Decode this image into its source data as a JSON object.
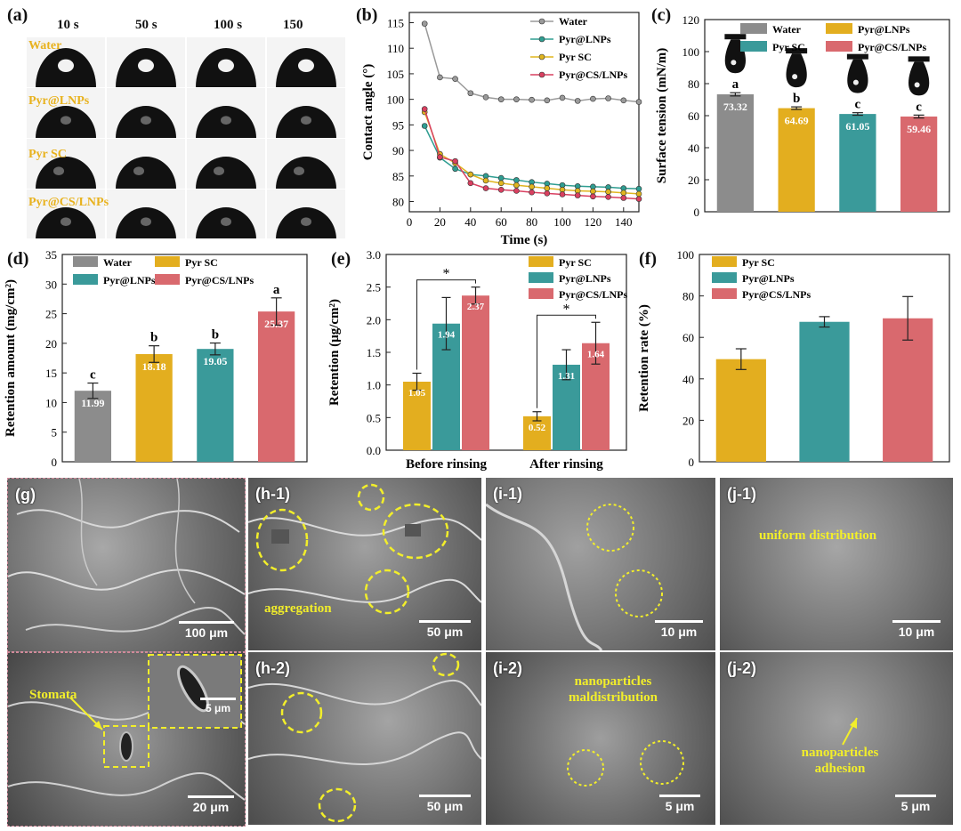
{
  "panels": {
    "a": "(a)",
    "b": "(b)",
    "c": "(c)",
    "d": "(d)",
    "e": "(e)",
    "f": "(f)",
    "g": "(g)",
    "h1": "(h-1)",
    "h2": "(h-2)",
    "i1": "(i-1)",
    "i2": "(i-2)",
    "j1": "(j-1)",
    "j2": "(j-2)"
  },
  "droplets": {
    "times": [
      "10 s",
      "50 s",
      "100 s",
      "150 s"
    ],
    "rows": [
      "Water",
      "Pyr@LNPs",
      "Pyr SC",
      "Pyr@CS/LNPs"
    ]
  },
  "colors": {
    "water": "#8c8c8c",
    "lnp": "#3a9a9a",
    "sc": "#e3ae1f",
    "cs": "#d9696e",
    "water_line": "#9a9a9a",
    "lnp_line": "#2f9d91",
    "sc_line": "#e0b51f",
    "cs_line": "#d94060",
    "sem_label": "#f2ee2a"
  },
  "chart_data": [
    {
      "id": "b",
      "type": "line",
      "xlabel": "Time (s)",
      "ylabel": "Contact angle (°)",
      "xlim": [
        0,
        150
      ],
      "ylim": [
        78,
        117
      ],
      "xticks": [
        0,
        20,
        40,
        60,
        80,
        100,
        120,
        140
      ],
      "yticks": [
        80,
        85,
        90,
        95,
        100,
        105,
        110,
        115
      ],
      "x": [
        10,
        20,
        30,
        40,
        50,
        60,
        70,
        80,
        90,
        100,
        110,
        120,
        130,
        140,
        150
      ],
      "series": [
        {
          "name": "Water",
          "color": "#9a9a9a",
          "values": [
            114.8,
            104.3,
            104.0,
            101.2,
            100.4,
            100.0,
            100.0,
            99.9,
            99.8,
            100.3,
            99.7,
            100.1,
            100.2,
            99.8,
            99.5
          ]
        },
        {
          "name": "Pyr@LNPs",
          "color": "#2f9d91",
          "values": [
            94.8,
            88.6,
            86.4,
            85.3,
            85.0,
            84.6,
            84.2,
            83.8,
            83.5,
            83.2,
            83.0,
            82.9,
            82.8,
            82.6,
            82.5
          ]
        },
        {
          "name": "Pyr SC",
          "color": "#e0b51f",
          "values": [
            97.5,
            89.3,
            87.5,
            85.3,
            84.1,
            83.6,
            83.2,
            82.9,
            82.6,
            82.3,
            82.1,
            82.0,
            81.9,
            81.7,
            81.5
          ]
        },
        {
          "name": "Pyr@CS/LNPs",
          "color": "#d94060",
          "values": [
            98.1,
            88.7,
            87.9,
            83.6,
            82.6,
            82.3,
            82.1,
            81.8,
            81.6,
            81.4,
            81.2,
            81.0,
            80.9,
            80.7,
            80.5
          ]
        }
      ]
    },
    {
      "id": "c",
      "type": "bar",
      "ylabel": "Surface tension (mN/m)",
      "ylim": [
        0,
        120
      ],
      "yticks": [
        0,
        20,
        40,
        60,
        80,
        100,
        120
      ],
      "categories": [
        "Water",
        "Pyr@LNPs",
        "Pyr SC",
        "Pyr@CS/LNPs"
      ],
      "values": [
        73.32,
        64.69,
        61.05,
        59.46
      ],
      "errors": [
        1.0,
        0.8,
        0.8,
        0.9
      ],
      "letters": [
        "a",
        "b",
        "c",
        "c"
      ],
      "value_labels": [
        "73.32",
        "64.69",
        "61.05",
        "59.46"
      ],
      "bar_colors": [
        "#8c8c8c",
        "#e3ae1f",
        "#3a9a9a",
        "#d9696e"
      ],
      "legend": [
        "Water",
        "Pyr@LNPs",
        "Pyr SC",
        "Pyr@CS/LNPs"
      ],
      "legend_colors": [
        "#8c8c8c",
        "#e3ae1f",
        "#3a9a9a",
        "#d9696e"
      ]
    },
    {
      "id": "d",
      "type": "bar",
      "ylabel": "Retention amount (mg/cm²)",
      "ylim": [
        0,
        35
      ],
      "yticks": [
        0,
        5,
        10,
        15,
        20,
        25,
        30,
        35
      ],
      "categories": [
        "Water",
        "Pyr SC",
        "Pyr@LNPs",
        "Pyr@CS/LNPs"
      ],
      "values": [
        11.99,
        18.18,
        19.05,
        25.37
      ],
      "errors": [
        1.3,
        1.4,
        1.0,
        2.3
      ],
      "letters": [
        "c",
        "b",
        "b",
        "a"
      ],
      "value_labels": [
        "11.99",
        "18.18",
        "19.05",
        "25.37"
      ],
      "bar_colors": [
        "#8c8c8c",
        "#e3ae1f",
        "#3a9a9a",
        "#d9696e"
      ],
      "legend": [
        "Water",
        "Pyr SC",
        "Pyr@LNPs",
        "Pyr@CS/LNPs"
      ],
      "legend_colors": [
        "#8c8c8c",
        "#e3ae1f",
        "#3a9a9a",
        "#d9696e"
      ]
    },
    {
      "id": "e",
      "type": "bar",
      "ylabel": "Retention (μg/cm²)",
      "ylim": [
        0,
        3.0
      ],
      "yticks": [
        "0.0",
        "0.5",
        "1.0",
        "1.5",
        "2.0",
        "2.5",
        "3.0"
      ],
      "categories": [
        "Before rinsing",
        "After rinsing"
      ],
      "series": [
        {
          "name": "Pyr SC",
          "color": "#e3ae1f",
          "values": [
            1.05,
            0.52
          ],
          "errors": [
            0.13,
            0.07
          ],
          "labels": [
            "1.05",
            "0.52"
          ]
        },
        {
          "name": "Pyr@LNPs",
          "color": "#3a9a9a",
          "values": [
            1.94,
            1.31
          ],
          "errors": [
            0.4,
            0.23
          ],
          "labels": [
            "1.94",
            "1.31"
          ]
        },
        {
          "name": "Pyr@CS/LNPs",
          "color": "#d9696e",
          "values": [
            2.37,
            1.64
          ],
          "errors": [
            0.13,
            0.32
          ],
          "labels": [
            "2.37",
            "1.64"
          ]
        }
      ],
      "significance": "*"
    },
    {
      "id": "f",
      "type": "bar",
      "ylabel": "Retention rate (%)",
      "ylim": [
        0,
        100
      ],
      "yticks": [
        0,
        20,
        40,
        60,
        80,
        100
      ],
      "categories": [
        "Pyr SC",
        "Pyr@LNPs",
        "Pyr@CS/LNPs"
      ],
      "values": [
        49.5,
        67.5,
        69.2
      ],
      "errors": [
        5.0,
        2.5,
        10.5
      ],
      "bar_colors": [
        "#e3ae1f",
        "#3a9a9a",
        "#d9696e"
      ],
      "legend": [
        "Pyr SC",
        "Pyr@LNPs",
        "Pyr@CS/LNPs"
      ]
    }
  ],
  "sem": {
    "g_scale": "100 μm",
    "g2_scale": "20 μm",
    "g2_inset_scale": "5 μm",
    "stomata": "Stomata",
    "h1_scale": "50 μm",
    "h1_text": "aggregation",
    "h2_scale": "50 μm",
    "i1_scale": "10 μm",
    "i2_scale": "5 μm",
    "i2_text_1": "nanoparticles",
    "i2_text_2": "maldistribution",
    "j1_scale": "10 μm",
    "j1_text": "uniform distribution",
    "j2_scale": "5 μm",
    "j2_text_1": "nanoparticles",
    "j2_text_2": "adhesion"
  }
}
